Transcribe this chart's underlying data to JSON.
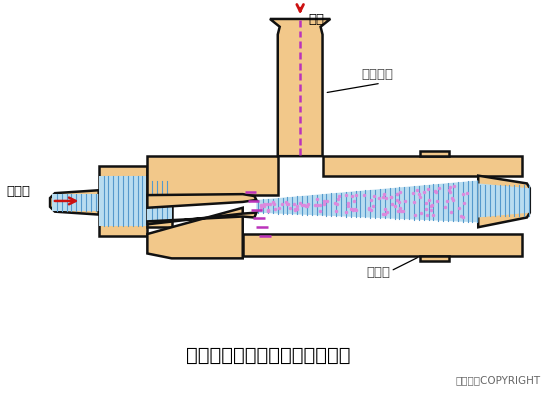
{
  "bg_color": "#ffffff",
  "body_color": "#F2C88A",
  "body_edge": "#111111",
  "blue_fill": "#B8DCF0",
  "blue_line": "#5599CC",
  "pink_dots": "#DD88DD",
  "magenta_dash": "#BB33BB",
  "red_color": "#CC1111",
  "title": "射流式水力冲击式空气扩散装置",
  "label_konqi": "空气",
  "label_konqiguan": "空气竖管",
  "label_hunheyie": "混合液",
  "label_kusanqi": "扩散器",
  "copyright": "东方仿真COPYRIGHT",
  "title_fontsize": 14,
  "label_fontsize": 9.5,
  "copy_fontsize": 7.5
}
